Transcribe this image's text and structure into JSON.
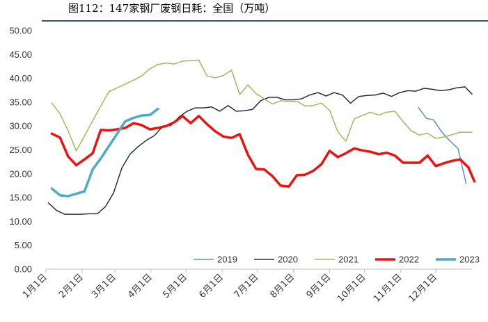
{
  "chart_data": {
    "type": "line",
    "title": "图112：147家钢厂废钢日耗：全国（万吨）",
    "xlabel": "",
    "ylabel": "",
    "ylim": [
      0,
      50
    ],
    "yticks": [
      "50.00",
      "45.00",
      "40.00",
      "35.00",
      "30.00",
      "25.00",
      "20.00",
      "15.00",
      "10.00",
      "5.00",
      "0.00"
    ],
    "x_domain": [
      1,
      366
    ],
    "x_ticks": [
      {
        "day": 1,
        "label": "1月1日"
      },
      {
        "day": 32,
        "label": "2月1日"
      },
      {
        "day": 60,
        "label": "3月1日"
      },
      {
        "day": 91,
        "label": "4月1日"
      },
      {
        "day": 121,
        "label": "5月1日"
      },
      {
        "day": 152,
        "label": "6月1日"
      },
      {
        "day": 182,
        "label": "7月1日"
      },
      {
        "day": 213,
        "label": "8月1日"
      },
      {
        "day": 244,
        "label": "9月1日"
      },
      {
        "day": 274,
        "label": "10月1日"
      },
      {
        "day": 305,
        "label": "11月1日"
      },
      {
        "day": 335,
        "label": "12月1日"
      }
    ],
    "grid": false,
    "legend_position": "bottom-right",
    "series": [
      {
        "name": "2019",
        "color": "#5b8ec9",
        "width": 1.5,
        "points": [
          [
            320,
            33.9
          ],
          [
            327,
            31.6
          ],
          [
            333,
            31.3
          ],
          [
            340,
            28.8
          ],
          [
            347,
            26.9
          ],
          [
            354,
            25.3
          ],
          [
            361,
            17.9
          ]
        ]
      },
      {
        "name": "2020",
        "color": "#1f3046",
        "width": 1.5,
        "points": [
          [
            3,
            13.9
          ],
          [
            10,
            12.3
          ],
          [
            17,
            11.5
          ],
          [
            24,
            11.5
          ],
          [
            31,
            11.5
          ],
          [
            38,
            11.6
          ],
          [
            45,
            11.6
          ],
          [
            52,
            13.1
          ],
          [
            59,
            16.0
          ],
          [
            66,
            21.2
          ],
          [
            73,
            24.1
          ],
          [
            80,
            25.7
          ],
          [
            87,
            27.0
          ],
          [
            94,
            28.0
          ],
          [
            101,
            29.9
          ],
          [
            108,
            30.1
          ],
          [
            115,
            31.9
          ],
          [
            122,
            33.1
          ],
          [
            129,
            33.8
          ],
          [
            136,
            33.8
          ],
          [
            143,
            34.0
          ],
          [
            150,
            33.1
          ],
          [
            157,
            34.3
          ],
          [
            164,
            33.1
          ],
          [
            171,
            33.2
          ],
          [
            178,
            33.5
          ],
          [
            185,
            35.3
          ],
          [
            192,
            36.0
          ],
          [
            199,
            36.0
          ],
          [
            206,
            35.5
          ],
          [
            213,
            35.5
          ],
          [
            220,
            35.7
          ],
          [
            227,
            36.5
          ],
          [
            234,
            37.0
          ],
          [
            241,
            36.3
          ],
          [
            248,
            37.0
          ],
          [
            255,
            36.5
          ],
          [
            262,
            34.8
          ],
          [
            269,
            36.2
          ],
          [
            276,
            36.4
          ],
          [
            283,
            36.5
          ],
          [
            290,
            36.9
          ],
          [
            297,
            36.2
          ],
          [
            304,
            37.0
          ],
          [
            311,
            37.4
          ],
          [
            318,
            37.3
          ],
          [
            325,
            37.9
          ],
          [
            332,
            37.7
          ],
          [
            339,
            37.4
          ],
          [
            346,
            37.6
          ],
          [
            353,
            38.0
          ],
          [
            360,
            38.2
          ],
          [
            366,
            36.7
          ]
        ]
      },
      {
        "name": "2021",
        "color": "#9bbb59",
        "width": 1.5,
        "points": [
          [
            6,
            34.8
          ],
          [
            13,
            32.6
          ],
          [
            20,
            29.0
          ],
          [
            27,
            24.8
          ],
          [
            34,
            27.9
          ],
          [
            41,
            31.1
          ],
          [
            48,
            34.2
          ],
          [
            55,
            37.2
          ],
          [
            62,
            38.0
          ],
          [
            69,
            38.8
          ],
          [
            76,
            39.6
          ],
          [
            83,
            40.5
          ],
          [
            90,
            42.0
          ],
          [
            97,
            42.9
          ],
          [
            104,
            43.2
          ],
          [
            111,
            43.0
          ],
          [
            118,
            43.6
          ],
          [
            125,
            43.7
          ],
          [
            132,
            43.8
          ],
          [
            139,
            40.5
          ],
          [
            146,
            40.1
          ],
          [
            153,
            40.6
          ],
          [
            160,
            41.7
          ],
          [
            167,
            36.6
          ],
          [
            174,
            38.6
          ],
          [
            181,
            36.8
          ],
          [
            188,
            35.7
          ],
          [
            195,
            34.6
          ],
          [
            202,
            35.3
          ],
          [
            209,
            35.1
          ],
          [
            216,
            35.2
          ],
          [
            223,
            34.2
          ],
          [
            230,
            34.3
          ],
          [
            237,
            34.8
          ],
          [
            244,
            33.3
          ],
          [
            251,
            28.8
          ],
          [
            258,
            26.8
          ],
          [
            265,
            31.5
          ],
          [
            272,
            32.2
          ],
          [
            279,
            32.9
          ],
          [
            286,
            32.3
          ],
          [
            293,
            32.9
          ],
          [
            300,
            33.1
          ],
          [
            307,
            30.9
          ],
          [
            314,
            29.0
          ],
          [
            321,
            28.1
          ],
          [
            328,
            28.5
          ],
          [
            335,
            27.4
          ],
          [
            342,
            27.7
          ],
          [
            349,
            28.2
          ],
          [
            356,
            28.7
          ],
          [
            366,
            28.7
          ]
        ]
      },
      {
        "name": "2022",
        "color": "#ee1111",
        "width": 3.5,
        "points": [
          [
            6,
            28.4
          ],
          [
            13,
            27.6
          ],
          [
            20,
            23.6
          ],
          [
            27,
            21.8
          ],
          [
            34,
            23.0
          ],
          [
            41,
            24.3
          ],
          [
            48,
            29.2
          ],
          [
            55,
            29.1
          ],
          [
            62,
            29.3
          ],
          [
            69,
            29.6
          ],
          [
            76,
            30.6
          ],
          [
            83,
            30.2
          ],
          [
            90,
            29.3
          ],
          [
            97,
            29.6
          ],
          [
            104,
            30.0
          ],
          [
            111,
            30.8
          ],
          [
            118,
            32.1
          ],
          [
            125,
            30.6
          ],
          [
            132,
            32.1
          ],
          [
            139,
            30.4
          ],
          [
            146,
            28.9
          ],
          [
            153,
            27.8
          ],
          [
            160,
            27.5
          ],
          [
            167,
            28.3
          ],
          [
            174,
            24.0
          ],
          [
            181,
            21.0
          ],
          [
            188,
            20.9
          ],
          [
            195,
            19.5
          ],
          [
            202,
            17.5
          ],
          [
            209,
            17.3
          ],
          [
            216,
            19.7
          ],
          [
            223,
            19.8
          ],
          [
            230,
            20.6
          ],
          [
            237,
            22.0
          ],
          [
            244,
            24.8
          ],
          [
            251,
            23.5
          ],
          [
            258,
            24.3
          ],
          [
            265,
            25.3
          ],
          [
            272,
            24.9
          ],
          [
            279,
            24.6
          ],
          [
            286,
            24.1
          ],
          [
            293,
            24.4
          ],
          [
            300,
            23.8
          ],
          [
            307,
            22.3
          ],
          [
            314,
            22.3
          ],
          [
            321,
            22.3
          ],
          [
            328,
            23.8
          ],
          [
            335,
            21.6
          ],
          [
            342,
            22.2
          ],
          [
            349,
            22.7
          ],
          [
            356,
            23.0
          ],
          [
            363,
            21.3
          ],
          [
            368,
            18.4
          ]
        ]
      },
      {
        "name": "2023",
        "color": "#4bacc6",
        "width": 3.5,
        "points": [
          [
            6,
            16.9
          ],
          [
            13,
            15.5
          ],
          [
            20,
            15.3
          ],
          [
            27,
            15.8
          ],
          [
            34,
            16.3
          ],
          [
            41,
            20.9
          ],
          [
            48,
            23.2
          ],
          [
            55,
            25.8
          ],
          [
            62,
            28.4
          ],
          [
            69,
            31.0
          ],
          [
            76,
            31.7
          ],
          [
            83,
            32.2
          ],
          [
            90,
            32.3
          ],
          [
            97,
            33.6
          ]
        ]
      }
    ]
  }
}
